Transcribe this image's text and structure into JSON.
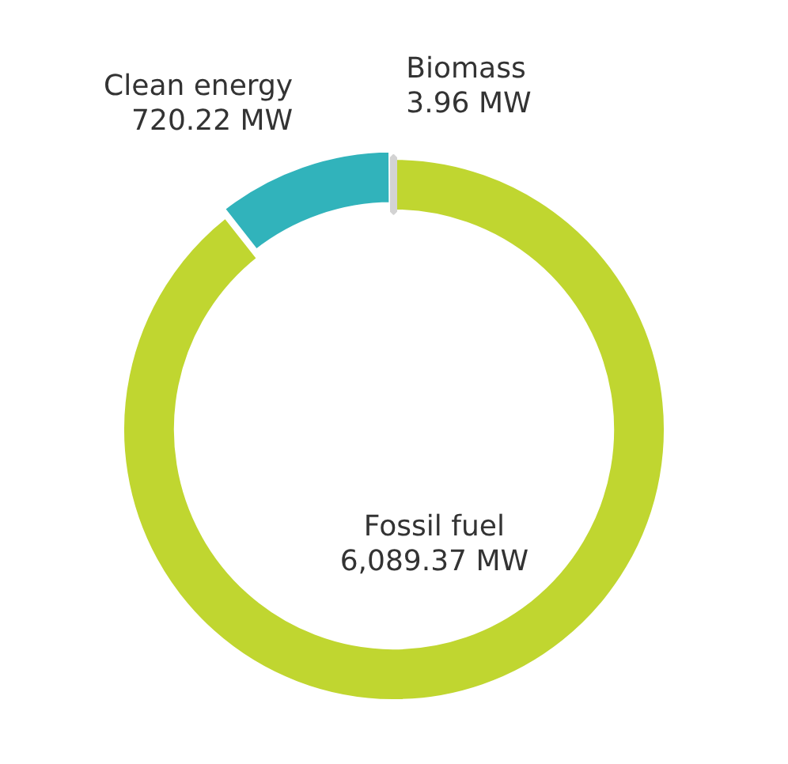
{
  "chart_data": {
    "type": "donut",
    "categories": [
      "Fossil fuel",
      "Clean energy",
      "Biomass"
    ],
    "values": [
      6089.37,
      720.22,
      3.96
    ],
    "colors": [
      "#c0d630",
      "#31b3bb",
      "#d3d3d3"
    ],
    "value_labels": [
      "6,089.37 MW",
      "720.22 MW",
      "3.96 MW"
    ],
    "legend": false
  }
}
